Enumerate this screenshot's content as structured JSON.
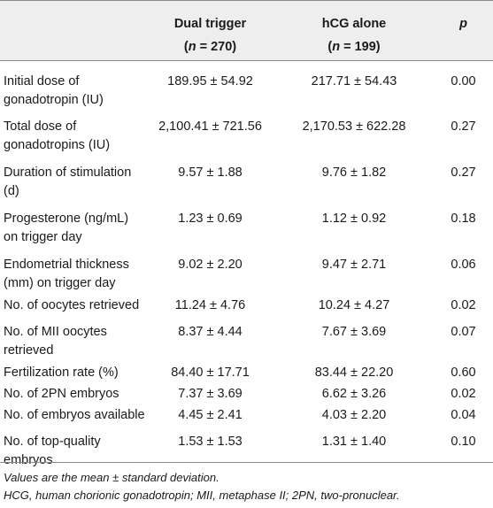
{
  "table": {
    "headers": {
      "col1_title": "Dual trigger",
      "col1_n_prefix": "(",
      "col1_n_var": "n",
      "col1_n_rest": " = 270)",
      "col2_title": "hCG alone",
      "col2_n_prefix": "(",
      "col2_n_var": "n",
      "col2_n_rest": " = 199)",
      "col3_title": "p"
    },
    "rows": [
      {
        "label": "Initial dose of gonadotropin (IU)",
        "dual": "189.95 ± 54.92",
        "hcg": "217.71 ± 54.43",
        "p": "0.00"
      },
      {
        "label": "Total dose of gonadotropins (IU)",
        "dual": "2,100.41 ± 721.56",
        "hcg": "2,170.53 ± 622.28",
        "p": "0.27"
      },
      {
        "label": "Duration of stimulation (d)",
        "dual": "9.57 ± 1.88",
        "hcg": "9.76 ± 1.82",
        "p": "0.27"
      },
      {
        "label": "Progesterone (ng/mL) on trigger day",
        "dual": "1.23 ± 0.69",
        "hcg": "1.12 ± 0.92",
        "p": "0.18"
      },
      {
        "label": "Endometrial thickness (mm) on trigger day",
        "dual": "9.02 ± 2.20",
        "hcg": "9.47 ± 2.71",
        "p": "0.06"
      },
      {
        "label": "No. of oocytes retrieved",
        "dual": "11.24 ± 4.76",
        "hcg": "10.24 ± 4.27",
        "p": "0.02"
      },
      {
        "label": "No. of MII oocytes retrieved",
        "dual": "8.37 ± 4.44",
        "hcg": "7.67 ± 3.69",
        "p": "0.07"
      },
      {
        "label": "Fertilization rate (%)",
        "dual": "84.40 ± 17.71",
        "hcg": "83.44 ± 22.20",
        "p": "0.60"
      },
      {
        "label": "No. of 2PN embryos",
        "dual": "7.37 ± 3.69",
        "hcg": "6.62 ± 3.26",
        "p": "0.02"
      },
      {
        "label": "No. of embryos available",
        "dual": "4.45 ± 2.41",
        "hcg": "4.03 ± 2.20",
        "p": "0.04"
      },
      {
        "label": "No. of top-quality embryos",
        "dual": "1.53 ± 1.53",
        "hcg": "1.31 ± 1.40",
        "p": "0.10"
      }
    ]
  },
  "footnotes": [
    "Values are the mean ± standard deviation.",
    "HCG, human chorionic gonadotropin; MII, metaphase II; 2PN, two-pronuclear."
  ]
}
